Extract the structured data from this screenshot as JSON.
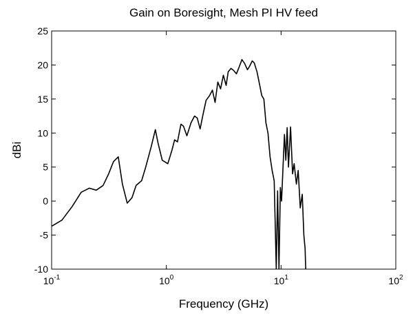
{
  "chart_data": {
    "type": "line",
    "title": "Gain on Boresight, Mesh PI HV feed",
    "x_label": "Frequency (GHz)",
    "y_label": "dBi",
    "x_scale": "log",
    "color": "#000000",
    "xlim": [
      0.1,
      100
    ],
    "xticks": [
      {
        "value": 0.1,
        "label": "10",
        "exponent": "-1"
      },
      {
        "value": 1,
        "label": "10",
        "exponent": "0"
      },
      {
        "value": 10,
        "label": "10",
        "exponent": "1"
      },
      {
        "value": 100,
        "label": "10",
        "exponent": "2"
      }
    ],
    "ylim": [
      -10,
      25
    ],
    "yticks": [
      -10,
      -5,
      0,
      5,
      10,
      15,
      20,
      25
    ],
    "x": [
      0.1,
      0.123,
      0.151,
      0.181,
      0.213,
      0.245,
      0.281,
      0.314,
      0.346,
      0.381,
      0.414,
      0.456,
      0.502,
      0.545,
      0.609,
      0.661,
      0.738,
      0.802,
      0.847,
      0.921,
      1.03,
      1.12,
      1.18,
      1.25,
      1.34,
      1.41,
      1.51,
      1.64,
      1.76,
      1.86,
      1.97,
      2.08,
      2.22,
      2.38,
      2.52,
      2.66,
      2.81,
      2.97,
      3.14,
      3.32,
      3.46,
      3.66,
      3.86,
      4.08,
      4.31,
      4.56,
      4.82,
      5.09,
      5.31,
      5.61,
      5.84,
      6.17,
      6.52,
      6.79,
      7.08,
      7.38,
      7.69,
      8.02,
      8.36,
      8.71,
      9.08,
      9.33,
      9.59,
      9.86,
      10.1,
      10.4,
      10.7,
      11.0,
      11.3,
      11.6,
      12.1,
      12.6,
      13.0,
      13.6,
      14.1,
      14.7,
      15.3,
      15.8,
      16.2,
      16.4
    ],
    "values": [
      -3.7,
      -2.8,
      -0.8,
      1.3,
      1.9,
      1.6,
      2.3,
      4.0,
      5.8,
      6.5,
      2.5,
      -0.3,
      0.5,
      2.3,
      3.0,
      5.0,
      8.0,
      10.5,
      8.5,
      6.0,
      5.5,
      7.5,
      9.0,
      8.7,
      11.3,
      11.0,
      9.6,
      11.5,
      12.5,
      12.2,
      10.6,
      12.6,
      14.8,
      15.5,
      16.3,
      14.5,
      17.5,
      16.5,
      18.5,
      17.0,
      19.0,
      19.5,
      19.2,
      18.7,
      19.7,
      20.8,
      20.2,
      19.3,
      19.8,
      20.6,
      20.3,
      19.0,
      17.0,
      15.5,
      15.0,
      11.5,
      10.0,
      6.5,
      4.5,
      3.0,
      -10,
      1.5,
      -10,
      2.0,
      0,
      5.0,
      9.8,
      6.0,
      10.8,
      5.0,
      10.9,
      4.0,
      5.5,
      2.5,
      4.5,
      -1.0,
      1.0,
      -5.0,
      -7.0,
      -10
    ]
  }
}
